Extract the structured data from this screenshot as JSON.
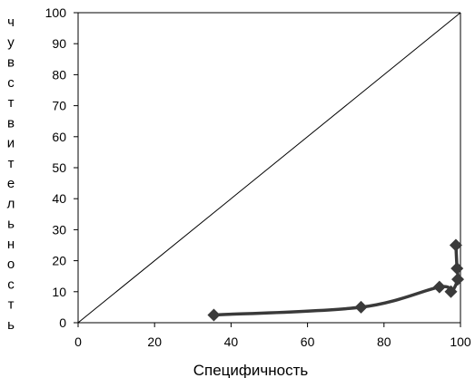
{
  "chart_data": {
    "type": "line",
    "xlabel": "Специфичность",
    "ylabel": "чувствительность",
    "xlim": [
      0,
      100
    ],
    "ylim": [
      0,
      100
    ],
    "x_ticks": [
      "0",
      "20",
      "40",
      "60",
      "80",
      "100"
    ],
    "y_ticks": [
      "0",
      "10",
      "20",
      "30",
      "40",
      "50",
      "60",
      "70",
      "80",
      "90",
      "100"
    ],
    "grid": false,
    "legend": "none",
    "reference_line": {
      "x": [
        0,
        100
      ],
      "y": [
        0,
        100
      ]
    },
    "series": [
      {
        "marker": "diamond",
        "color": "#3a3a3a",
        "points": [
          {
            "x": 35.5,
            "y": 2.5
          },
          {
            "x": 74,
            "y": 5
          },
          {
            "x": 94.5,
            "y": 11.5
          },
          {
            "x": 97.5,
            "y": 10
          },
          {
            "x": 99.3,
            "y": 14
          },
          {
            "x": 99.1,
            "y": 17.5
          },
          {
            "x": 98.8,
            "y": 25
          }
        ]
      }
    ]
  }
}
